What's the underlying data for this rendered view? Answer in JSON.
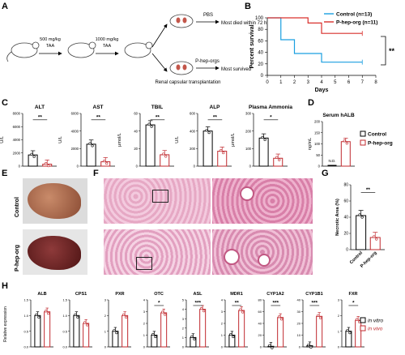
{
  "panels": {
    "a": "A",
    "b": "B",
    "c": "C",
    "d": "D",
    "e": "E",
    "f": "F",
    "g": "G",
    "h": "H"
  },
  "schematic": {
    "dose1": "500 mg/kg",
    "drug1": "TAA",
    "dose2": "1000 mg/kg",
    "drug2": "TAA",
    "pbs": "PBS",
    "pbs_outcome": "Most died within 72 h",
    "treatment": "P-hep-orgs",
    "procedure": "Renal capsular transplantation",
    "treatment_outcome": "Most survived"
  },
  "survival": {
    "ylabel": "Percent survival",
    "xlabel": "Days",
    "significance": "**",
    "legend": [
      "Control (n=13)",
      "P-hep-org (n=11)"
    ],
    "xticks": [
      "0",
      "1",
      "2",
      "3",
      "4",
      "5",
      "6",
      "7",
      "8"
    ],
    "yticks": [
      "0",
      "20",
      "40",
      "60",
      "80",
      "100"
    ]
  },
  "biochem": {
    "panels": [
      {
        "title": "ALT",
        "unit": "U/L",
        "yticks": [
          "0",
          "2000",
          "4000",
          "6000",
          "8000"
        ],
        "sig": "**"
      },
      {
        "title": "AST",
        "unit": "U/L",
        "yticks": [
          "0",
          "2000",
          "4000",
          "6000"
        ],
        "sig": "**"
      },
      {
        "title": "TBIL",
        "unit": "μmol/L",
        "yticks": [
          "0",
          "20",
          "40",
          "60"
        ],
        "sig": "**"
      },
      {
        "title": "ALP",
        "unit": "U/L",
        "yticks": [
          "0",
          "200",
          "400",
          "600"
        ],
        "sig": "**"
      },
      {
        "title": "Plasma Ammonia",
        "unit": "μmol/L",
        "yticks": [
          "0",
          "100",
          "200",
          "300"
        ],
        "sig": "*"
      }
    ]
  },
  "halb": {
    "title": "Serum hALB",
    "unit": "ng/mL",
    "yticks": [
      "0",
      "50",
      "100",
      "150",
      "200"
    ],
    "nd": "N.D.",
    "legend": [
      "Control",
      "P-hep-org"
    ]
  },
  "photos": {
    "control": "Control",
    "treated": "P-hep-org"
  },
  "necrotic": {
    "ylabel": "Necrotic Area (%)",
    "yticks": [
      "0",
      "20",
      "40",
      "60",
      "80"
    ],
    "categories": [
      "Control",
      "P-hep-org"
    ],
    "sig": "**"
  },
  "expression": {
    "ylabel": "Relative expression",
    "genes": [
      {
        "name": "ALB",
        "yticks": [
          "0.0",
          "0.5",
          "1.0",
          "1.5"
        ],
        "sig": ""
      },
      {
        "name": "CPS1",
        "yticks": [
          "0.0",
          "0.5",
          "1.0",
          "1.5"
        ],
        "sig": ""
      },
      {
        "name": "PXR",
        "yticks": [
          "0",
          "1",
          "2",
          "3"
        ],
        "sig": ""
      },
      {
        "name": "OTC",
        "yticks": [
          "0",
          "1",
          "2",
          "3",
          "4"
        ],
        "sig": "*"
      },
      {
        "name": "ASL",
        "yticks": [
          "0",
          "1",
          "2",
          "3",
          "4",
          "5"
        ],
        "sig": "***"
      },
      {
        "name": "MDR1",
        "yticks": [
          "0",
          "1",
          "2",
          "3",
          "4"
        ],
        "sig": "**"
      },
      {
        "name": "CYP1A2",
        "yticks": [
          "0",
          "20",
          "40",
          "60",
          "80"
        ],
        "sig": "***"
      },
      {
        "name": "CYP1B1",
        "yticks": [
          "0",
          "10",
          "20",
          "30",
          "40"
        ],
        "sig": "***"
      },
      {
        "name": "FXR",
        "yticks": [
          "0",
          "1",
          "2",
          "3"
        ],
        "sig": "*"
      }
    ],
    "legend": [
      "in vitro",
      "in vivo"
    ]
  },
  "colors": {
    "control": "#1a9fe0",
    "treated": "#d9302c",
    "black": "#000000",
    "red": "#c0282d"
  },
  "chart_data": [
    {
      "type": "line",
      "title": "",
      "xlabel": "Days",
      "ylabel": "Percent survival",
      "xlim": [
        0,
        8
      ],
      "ylim": [
        0,
        100
      ],
      "series": [
        {
          "name": "Control (n=13)",
          "x": [
            0,
            1,
            1,
            2,
            2,
            4,
            4,
            7
          ],
          "y": [
            100,
            100,
            62,
            62,
            38,
            38,
            23,
            23
          ]
        },
        {
          "name": "P-hep-org (n=11)",
          "x": [
            0,
            3,
            3,
            4,
            4,
            7
          ],
          "y": [
            100,
            100,
            91,
            91,
            73,
            73
          ]
        }
      ]
    },
    {
      "type": "bar",
      "title": "ALT",
      "ylabel": "U/L",
      "ylim": [
        0,
        8000
      ],
      "categories": [
        "Control",
        "P-hep-org"
      ],
      "series": [
        {
          "values": [
            1700,
            300
          ]
        }
      ]
    },
    {
      "type": "bar",
      "title": "AST",
      "ylabel": "U/L",
      "ylim": [
        0,
        6000
      ],
      "categories": [
        "Control",
        "P-hep-org"
      ],
      "series": [
        {
          "values": [
            2500,
            500
          ]
        }
      ]
    },
    {
      "type": "bar",
      "title": "TBIL",
      "ylabel": "μmol/L",
      "ylim": [
        0,
        60
      ],
      "categories": [
        "Control",
        "P-hep-org"
      ],
      "series": [
        {
          "values": [
            47,
            13
          ]
        }
      ]
    },
    {
      "type": "bar",
      "title": "ALP",
      "ylabel": "U/L",
      "ylim": [
        0,
        600
      ],
      "categories": [
        "Control",
        "P-hep-org"
      ],
      "series": [
        {
          "values": [
            400,
            170
          ]
        }
      ]
    },
    {
      "type": "bar",
      "title": "Plasma Ammonia",
      "ylabel": "μmol/L",
      "ylim": [
        0,
        300
      ],
      "categories": [
        "Control",
        "P-hep-org"
      ],
      "series": [
        {
          "values": [
            160,
            45
          ]
        }
      ]
    },
    {
      "type": "bar",
      "title": "Serum hALB",
      "ylabel": "ng/mL",
      "ylim": [
        0,
        200
      ],
      "categories": [
        "Control",
        "P-hep-org"
      ],
      "series": [
        {
          "values": [
            0,
            110
          ]
        }
      ]
    },
    {
      "type": "bar",
      "title": "",
      "ylabel": "Necrotic Area (%)",
      "ylim": [
        0,
        80
      ],
      "categories": [
        "Control",
        "P-hep-org"
      ],
      "series": [
        {
          "values": [
            42,
            15
          ]
        }
      ]
    },
    {
      "type": "bar",
      "title": "",
      "ylabel": "Relative expression",
      "categories": [
        "ALB",
        "CPS1",
        "PXR",
        "OTC",
        "ASL",
        "MDR1",
        "CYP1A2",
        "CYP1B1",
        "FXR"
      ],
      "ylims": [
        [
          0,
          1.5
        ],
        [
          0,
          1.5
        ],
        [
          0,
          3
        ],
        [
          0,
          4
        ],
        [
          0,
          5
        ],
        [
          0,
          4
        ],
        [
          0,
          80
        ],
        [
          0,
          40
        ],
        [
          0,
          3
        ]
      ],
      "series": [
        {
          "name": "in vitro",
          "values": [
            1.0,
            1.0,
            1.0,
            1.0,
            1.0,
            1.0,
            1.0,
            1.0,
            1.0
          ]
        },
        {
          "name": "in vivo",
          "values": [
            1.12,
            0.75,
            2.0,
            2.9,
            4.0,
            3.1,
            50,
            26,
            1.7
          ]
        }
      ]
    }
  ]
}
